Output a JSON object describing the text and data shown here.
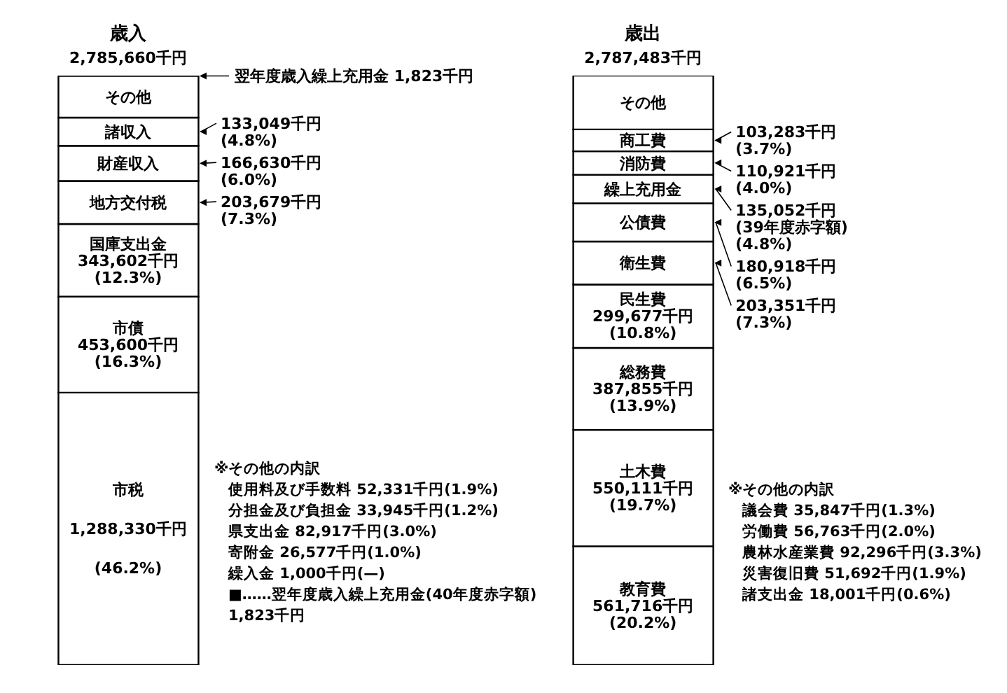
{
  "chart_data": {
    "type": "bar",
    "stacked": true,
    "categories": [
      "歳入",
      "歳出"
    ],
    "totals": [
      "2,785,660千円",
      "2,787,483千円"
    ],
    "series": [
      {
        "values": [
          1288330,
          561716
        ],
        "colors": [
          "#ffffff",
          "#ffffff"
        ],
        "value_labels": [
          "市税\n1,288,330千円\n(46.2%)",
          "教育費\n561,716千円\n(20.2%)"
        ]
      },
      {
        "values": [
          453600,
          550111
        ],
        "colors": [
          "#ffffff",
          "#ffffff"
        ],
        "value_labels": [
          "市債\n453,600千円\n(16.3%)",
          "土木費\n550,111千円\n(19.7%)"
        ]
      },
      {
        "values": [
          343602,
          387855
        ],
        "colors": [
          "#ffffff",
          "#ffffff"
        ],
        "value_labels": [
          "国庫支出金\n343,602千円\n(12.3%)",
          "総務費\n387,855千円\n(13.9%)"
        ]
      },
      {
        "values": [
          203679,
          299677
        ],
        "colors": [
          "#ffffff",
          "#ffffff"
        ],
        "value_labels": [
          "地方交付税\n203,679千円\n(7.3%)",
          "民生費\n299,677千円\n(10.8%)"
        ]
      },
      {
        "values": [
          166630,
          203351
        ],
        "colors": [
          "#ffffff",
          "#ffffff"
        ],
        "value_labels": [
          "財産収入\n166,630千円\n(6.0%)",
          "衛生費\n203,351千円\n(7.3%)"
        ]
      },
      {
        "values": [
          133049,
          180918
        ],
        "colors": [
          "#ffffff",
          "#ffffff"
        ],
        "value_labels": [
          "諸収入\n133,049千円\n(4.8%)",
          "公債費\n180,918千円\n(6.5%)"
        ]
      },
      {
        "values": [
          196770,
          135052
        ],
        "colors": [
          "#ffffff",
          "#ffffff"
        ],
        "value_labels": [
          "その他",
          "繰上充用金\n135,052千円\n(39年度赤字額)\n(4.8%)"
        ]
      },
      {
        "values": [
          null,
          110921
        ],
        "colors": [
          "#ffffff",
          "#ffffff"
        ],
        "value_labels": [
          null,
          "消防費\n110,921千円\n(4.0%)"
        ]
      },
      {
        "values": [
          null,
          103283
        ],
        "colors": [
          "#ffffff",
          "#ffffff"
        ],
        "value_labels": [
          null,
          "商工費\n103,283千円\n(3.7%)"
        ]
      },
      {
        "values": [
          null,
          254599
        ],
        "colors": [
          "#ffffff",
          "#ffffff"
        ],
        "value_labels": [
          null,
          "その他"
        ]
      }
    ],
    "annotations": [
      "翌年度歳入繰上充用金 1,823千円",
      "※その他の内訳",
      "使用料及び手数料 52,331千円(1.9%)",
      "分担金及び負担金 33,945千円(1.2%)",
      "県支出金 82,917千円(3.0%)",
      "寄附金 26,577千円(1.0%)",
      "繰入金 1,000千円(—)",
      "■……翌年度歳入繰上充用金(40年度赤字額)",
      "1,823千円",
      "※その他の内訳",
      "議会費 35,847千円(1.3%)",
      "労働費 56,763千円(2.0%)",
      "農林水産業費 92,296千円(3.3%)",
      "災害復旧費 51,692千円(1.9%)",
      "諸支出金 18,001千円(0.6%)"
    ]
  }
}
